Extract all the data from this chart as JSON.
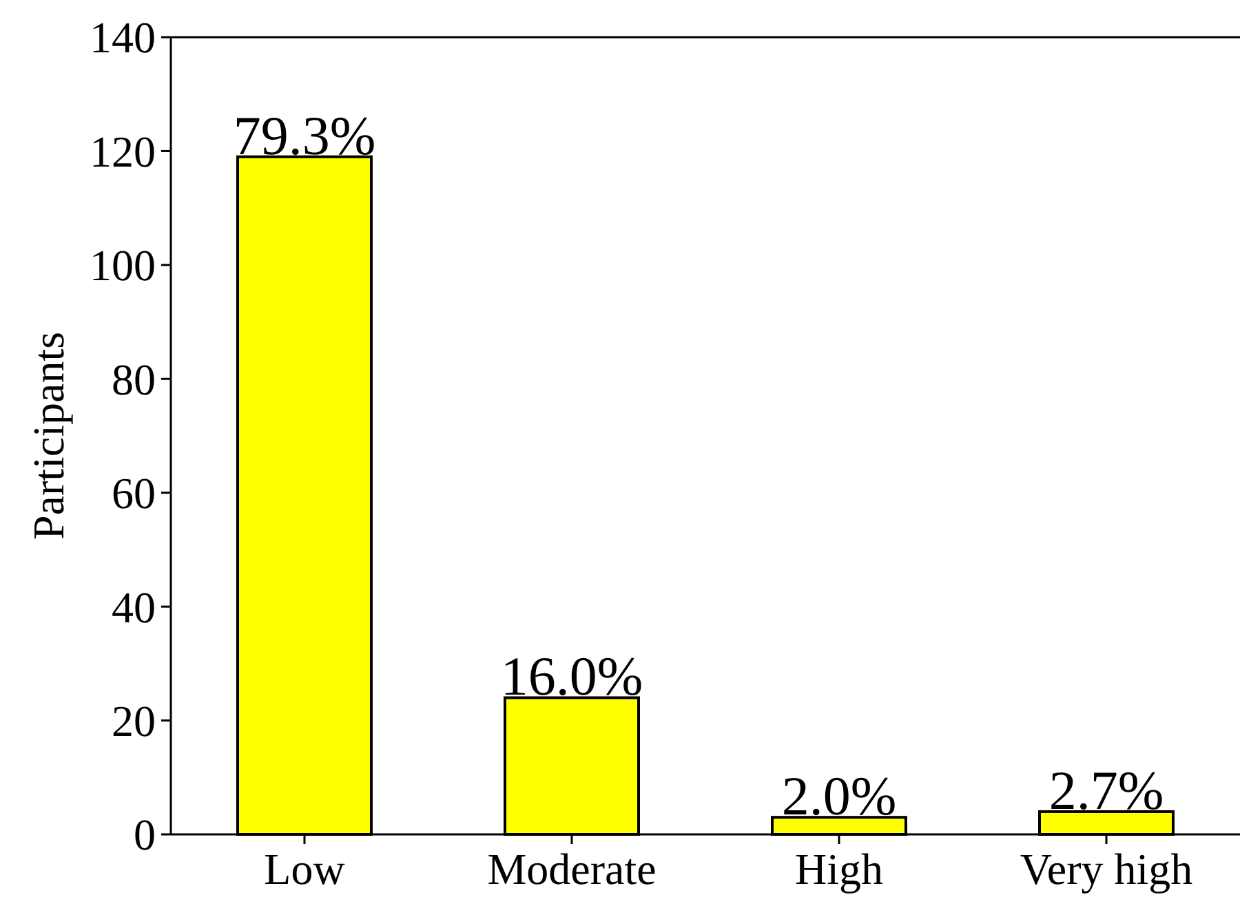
{
  "chart_data": {
    "type": "bar",
    "ylabel": "Participants",
    "categories": [
      "Low",
      "Moderate",
      "High",
      "Very high"
    ],
    "values": [
      119,
      24,
      3,
      4
    ],
    "color": "#ffff00",
    "annotations": [
      {
        "text": "79.3%",
        "x": "Low",
        "y": 119
      },
      {
        "text": "16.0%",
        "x": "Moderate",
        "y": 24
      },
      {
        "text": "2.0%",
        "x": "High",
        "y": 3
      },
      {
        "text": "2.7%",
        "x": "Very high",
        "y": 4
      }
    ],
    "ylim": [
      0,
      140
    ],
    "yticks": [
      0,
      20,
      40,
      60,
      80,
      100,
      120,
      140
    ],
    "grid": false
  }
}
